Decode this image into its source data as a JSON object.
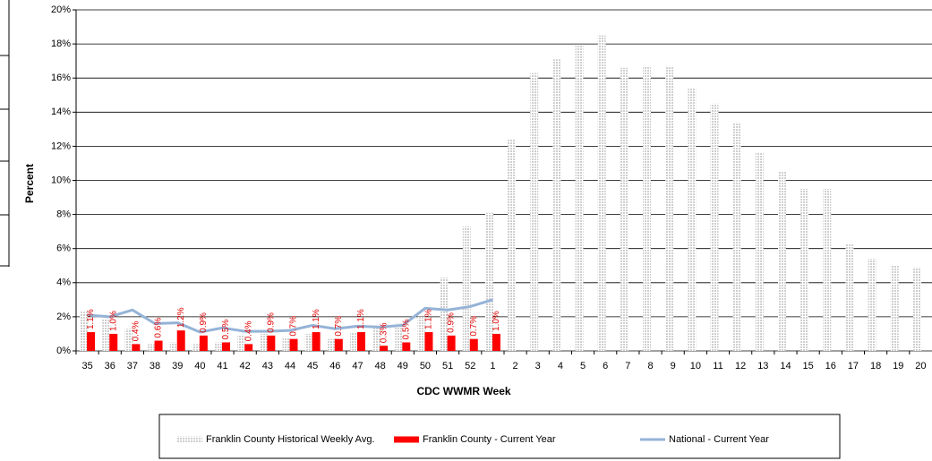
{
  "chart_data": {
    "type": "bar",
    "x_label": "CDC WWMR Week",
    "y_label": "Percent",
    "categories": [
      "35",
      "36",
      "37",
      "38",
      "39",
      "40",
      "41",
      "42",
      "43",
      "44",
      "45",
      "46",
      "47",
      "48",
      "49",
      "50",
      "51",
      "52",
      "1",
      "2",
      "3",
      "4",
      "5",
      "6",
      "7",
      "8",
      "9",
      "10",
      "11",
      "12",
      "13",
      "14",
      "15",
      "16",
      "17",
      "18",
      "19",
      "20"
    ],
    "ylim": [
      0,
      20
    ],
    "yticks": [
      {
        "value": 0,
        "label": "0%"
      },
      {
        "value": 2,
        "label": "2%"
      },
      {
        "value": 4,
        "label": "4%"
      },
      {
        "value": 6,
        "label": "6%"
      },
      {
        "value": 8,
        "label": "8%"
      },
      {
        "value": 10,
        "label": "10%"
      },
      {
        "value": 12,
        "label": "12%"
      },
      {
        "value": 14,
        "label": "14%"
      },
      {
        "value": 16,
        "label": "16%"
      },
      {
        "value": 18,
        "label": "18%"
      },
      {
        "value": 20,
        "label": "20%"
      }
    ],
    "grid": true,
    "series": [
      {
        "name": "Franklin County Historical Weekly Avg.",
        "type": "bar",
        "color": "#cfcfcf",
        "values": [
          2.3,
          1.9,
          1.3,
          0.4,
          0.5,
          0.4,
          0.5,
          0.9,
          1.0,
          0.8,
          1.0,
          0.7,
          1.1,
          1.4,
          1.6,
          2.0,
          4.3,
          7.3,
          8.1,
          12.4,
          16.3,
          17.1,
          17.9,
          18.5,
          16.6,
          16.7,
          16.7,
          15.4,
          14.5,
          13.4,
          11.6,
          10.5,
          9.5,
          9.5,
          6.3,
          5.4,
          5.0,
          4.9
        ]
      },
      {
        "name": "Franklin County - Current Year",
        "type": "bar",
        "color": "#ff0000",
        "values": [
          1.1,
          1.0,
          0.4,
          0.6,
          1.2,
          0.9,
          0.5,
          0.4,
          0.9,
          0.7,
          1.1,
          0.7,
          1.1,
          0.3,
          0.5,
          1.1,
          0.9,
          0.7,
          1.0,
          null,
          null,
          null,
          null,
          null,
          null,
          null,
          null,
          null,
          null,
          null,
          null,
          null,
          null,
          null,
          null,
          null,
          null,
          null
        ],
        "value_labels": [
          "1.1%",
          "1.0%",
          "0.4%",
          "0.6%",
          "1.2%",
          "0.9%",
          "0.5%",
          "0.4%",
          "0.9%",
          "0.7%",
          "1.1%",
          "0.7%",
          "1.1%",
          "0.3%",
          "0.5%",
          "1.1%",
          "0.9%",
          "0.7%",
          "1.0%",
          null,
          null,
          null,
          null,
          null,
          null,
          null,
          null,
          null,
          null,
          null,
          null,
          null,
          null,
          null,
          null,
          null,
          null,
          null
        ]
      },
      {
        "name": "National - Current Year",
        "type": "line",
        "color": "#95b3d7",
        "values": [
          2.1,
          2.0,
          2.4,
          1.6,
          1.65,
          1.1,
          1.35,
          1.15,
          1.15,
          1.2,
          1.5,
          1.3,
          1.45,
          1.4,
          1.5,
          2.5,
          2.4,
          2.6,
          3.0,
          null,
          null,
          null,
          null,
          null,
          null,
          null,
          null,
          null,
          null,
          null,
          null,
          null,
          null,
          null,
          null,
          null,
          null,
          null
        ]
      }
    ]
  }
}
